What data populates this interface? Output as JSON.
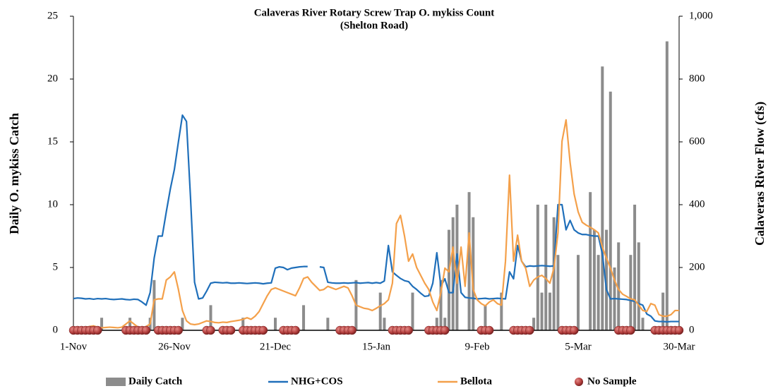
{
  "chart_data": {
    "type": "bar_line",
    "title": "Calaveras River Rotary Screw Trap O. mykiss Count",
    "subtitle": "(Shelton Road)",
    "y_label": "Daily O. mykiss Catch",
    "y2_label": "Calaveras River Flow (cfs)",
    "categories": [
      "1-Nov",
      null,
      null,
      null,
      null,
      null,
      null,
      null,
      null,
      null,
      null,
      null,
      null,
      null,
      null,
      null,
      null,
      null,
      null,
      null,
      null,
      null,
      null,
      null,
      null,
      "26-Nov",
      null,
      null,
      null,
      null,
      null,
      null,
      null,
      null,
      null,
      null,
      null,
      null,
      null,
      null,
      null,
      null,
      null,
      null,
      null,
      null,
      null,
      null,
      null,
      null,
      "21-Dec",
      null,
      null,
      null,
      null,
      null,
      null,
      null,
      null,
      null,
      null,
      null,
      null,
      null,
      null,
      null,
      null,
      null,
      null,
      null,
      null,
      null,
      null,
      null,
      null,
      "15-Jan",
      null,
      null,
      null,
      null,
      null,
      null,
      null,
      null,
      null,
      null,
      null,
      null,
      null,
      null,
      null,
      null,
      null,
      null,
      null,
      null,
      null,
      null,
      null,
      null,
      "9-Feb",
      null,
      null,
      null,
      null,
      null,
      null,
      null,
      null,
      null,
      null,
      null,
      null,
      null,
      null,
      null,
      null,
      null,
      null,
      null,
      null,
      null,
      null,
      null,
      null,
      "5-Mar",
      null,
      null,
      null,
      null,
      null,
      null,
      null,
      null,
      null,
      null,
      null,
      null,
      null,
      null,
      null,
      null,
      null,
      null,
      null,
      null,
      null,
      null,
      null,
      null,
      "30-Mar"
    ],
    "ylim": [
      0,
      25
    ],
    "yticks": [
      0,
      5,
      10,
      15,
      20,
      25
    ],
    "y2lim": [
      0,
      1000
    ],
    "y2ticks": [
      0,
      200,
      400,
      600,
      800,
      {
        "value": 1000,
        "label": "1,000"
      }
    ],
    "series": [
      {
        "name": "Daily Catch",
        "kind": "bar",
        "color": "#8c8c8c",
        "values": [
          0,
          0,
          0,
          0,
          0,
          0,
          0,
          1,
          0,
          0,
          0,
          0,
          0,
          0,
          1,
          0,
          0,
          0,
          0,
          1,
          4,
          0,
          0,
          0,
          0,
          0,
          0,
          1,
          0,
          0,
          0,
          0,
          0,
          0,
          2,
          0,
          0,
          0,
          0,
          0,
          0,
          0,
          1,
          0,
          0,
          0,
          0,
          0,
          0,
          0,
          1,
          0,
          0,
          0,
          0,
          0,
          0,
          2,
          0,
          0,
          0,
          0,
          0,
          1,
          0,
          0,
          0,
          0,
          0,
          0,
          4,
          0,
          0,
          0,
          0,
          0,
          3,
          1,
          0,
          0,
          0,
          0,
          0,
          0,
          3,
          0,
          0,
          0,
          0,
          0,
          1,
          4,
          1,
          8,
          9,
          10,
          0,
          0,
          11,
          9,
          0,
          0,
          2,
          0,
          0,
          0,
          3,
          0,
          0,
          0,
          0,
          0,
          0,
          0,
          1,
          10,
          3,
          10,
          3,
          9,
          6,
          0,
          0,
          0,
          0,
          6,
          0,
          0,
          11,
          8,
          6,
          21,
          8,
          19,
          5,
          7,
          0,
          0,
          6,
          10,
          7,
          1,
          0,
          0,
          0,
          0,
          3,
          23,
          0,
          0,
          0
        ]
      },
      {
        "name": "NHG+COS",
        "kind": "line",
        "axis": "y2",
        "color": "#1f6fba",
        "values": [
          101,
          103,
          102,
          100,
          101,
          99,
          101,
          100,
          101,
          99,
          98,
          99,
          100,
          98,
          97,
          99,
          98,
          90,
          80,
          120,
          230,
          300,
          300,
          377,
          450,
          512,
          600,
          685,
          665,
          422,
          153,
          100,
          103,
          125,
          150,
          153,
          152,
          151,
          152,
          150,
          150,
          151,
          150,
          149,
          150,
          151,
          150,
          148,
          150,
          151,
          198,
          202,
          200,
          193,
          198,
          200,
          202,
          203,
          203,
          null,
          null,
          202,
          200,
          153,
          151,
          150,
          150,
          151,
          150,
          151,
          152,
          150,
          151,
          152,
          150,
          152,
          150,
          157,
          270,
          186,
          175,
          165,
          158,
          155,
          140,
          130,
          118,
          108,
          110,
          150,
          247,
          141,
          164,
          120,
          120,
          243,
          120,
          105,
          103,
          102,
          100,
          101,
          102,
          100,
          101,
          102,
          101,
          100,
          186,
          164,
          270,
          220,
          202,
          205,
          204,
          205,
          206,
          205,
          204,
          205,
          400,
          400,
          320,
          350,
          320,
          310,
          305,
          305,
          302,
          300,
          300,
          243,
          130,
          100,
          101,
          100,
          99,
          98,
          95,
          92,
          85,
          80,
          52,
          45,
          30,
          28,
          28,
          27,
          28,
          28,
          28
        ]
      },
      {
        "name": "Bellota",
        "kind": "line",
        "axis": "y2",
        "color": "#f4a04a",
        "values": [
          10,
          9,
          8,
          10,
          12,
          14,
          10,
          8,
          9,
          10,
          9,
          8,
          10,
          20,
          30,
          20,
          10,
          8,
          12,
          20,
          97,
          100,
          100,
          160,
          170,
          186,
          130,
          63,
          30,
          20,
          18,
          20,
          25,
          30,
          28,
          25,
          24,
          26,
          25,
          28,
          30,
          32,
          35,
          40,
          35,
          45,
          60,
          85,
          110,
          130,
          135,
          130,
          125,
          120,
          115,
          110,
          135,
          165,
          170,
          153,
          140,
          127,
          130,
          140,
          135,
          130,
          135,
          140,
          135,
          110,
          80,
          75,
          70,
          68,
          63,
          70,
          78,
          85,
          97,
          150,
          340,
          366,
          300,
          220,
          243,
          200,
          175,
          150,
          130,
          90,
          63,
          120,
          198,
          186,
          265,
          150,
          265,
          140,
          310,
          130,
          97,
          85,
          78,
          90,
          97,
          85,
          80,
          220,
          494,
          220,
          303,
          220,
          198,
          140,
          160,
          170,
          175,
          165,
          150,
          198,
          310,
          602,
          670,
          535,
          434,
          377,
          344,
          335,
          328,
          320,
          310,
          265,
          230,
          198,
          160,
          130,
          115,
          108,
          100,
          97,
          80,
          63,
          60,
          85,
          80,
          50,
          45,
          45,
          50,
          63,
          63
        ]
      },
      {
        "name": "No Sample",
        "kind": "marker",
        "color": "#b5403f",
        "values": [
          0,
          0,
          0,
          0,
          0,
          0,
          0,
          null,
          null,
          null,
          null,
          null,
          null,
          0,
          0,
          0,
          0,
          0,
          0,
          null,
          null,
          0,
          0,
          0,
          0,
          0,
          0,
          null,
          null,
          null,
          null,
          null,
          null,
          0,
          0,
          null,
          null,
          0,
          0,
          0,
          null,
          null,
          0,
          0,
          0,
          0,
          0,
          0,
          null,
          null,
          null,
          null,
          0,
          0,
          0,
          0,
          null,
          null,
          null,
          null,
          null,
          null,
          null,
          null,
          null,
          null,
          0,
          0,
          0,
          0,
          null,
          null,
          null,
          null,
          null,
          null,
          null,
          null,
          null,
          0,
          0,
          0,
          0,
          0,
          null,
          null,
          null,
          null,
          0,
          0,
          0,
          0,
          0,
          null,
          null,
          null,
          null,
          null,
          null,
          null,
          null,
          0,
          0,
          0,
          null,
          null,
          null,
          null,
          null,
          0,
          0,
          0,
          0,
          0,
          null,
          null,
          null,
          null,
          null,
          null,
          null,
          0,
          0,
          0,
          0,
          null,
          null,
          null,
          null,
          null,
          null,
          null,
          null,
          null,
          null,
          0,
          0,
          0,
          0,
          null,
          null,
          null,
          null,
          null,
          0,
          0,
          0,
          0,
          0,
          0,
          0
        ]
      }
    ],
    "legend": "bottom"
  }
}
